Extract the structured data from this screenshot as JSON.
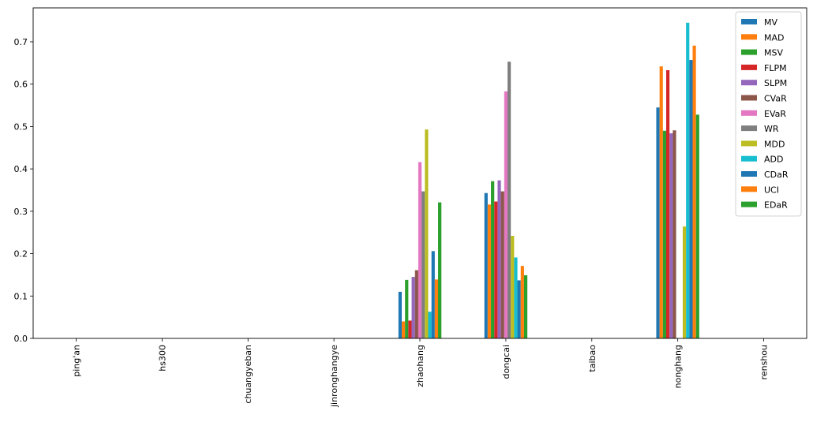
{
  "chart_data": {
    "type": "bar",
    "title": "",
    "xlabel": "",
    "ylabel": "",
    "categories": [
      "ping'an",
      "hs300",
      "chuangyeban",
      "jinronghangye",
      "zhaohang",
      "dongcai",
      "taibao",
      "nonghang",
      "renshou"
    ],
    "ylim": [
      0,
      0.78
    ],
    "yticks": [
      0.0,
      0.1,
      0.2,
      0.3,
      0.4,
      0.5,
      0.6,
      0.7
    ],
    "ytick_labels": [
      "0.0",
      "0.1",
      "0.2",
      "0.3",
      "0.4",
      "0.5",
      "0.6",
      "0.7"
    ],
    "grid": false,
    "legend_position": "top-right",
    "series": [
      {
        "name": "MV",
        "color": "#1f77b4",
        "values": [
          0,
          0,
          0,
          0,
          0.11,
          0.343,
          0,
          0.545,
          0
        ]
      },
      {
        "name": "MAD",
        "color": "#ff7f0e",
        "values": [
          0,
          0,
          0,
          0,
          0.04,
          0.316,
          0,
          0.642,
          0
        ]
      },
      {
        "name": "MSV",
        "color": "#2ca02c",
        "values": [
          0,
          0,
          0,
          0,
          0.138,
          0.371,
          0,
          0.49,
          0
        ]
      },
      {
        "name": "FLPM",
        "color": "#d62728",
        "values": [
          0,
          0,
          0,
          0,
          0.042,
          0.323,
          0,
          0.633,
          0
        ]
      },
      {
        "name": "SLPM",
        "color": "#9467bd",
        "values": [
          0,
          0,
          0,
          0,
          0.145,
          0.373,
          0,
          0.484,
          0
        ]
      },
      {
        "name": "CVaR",
        "color": "#8c564b",
        "values": [
          0,
          0,
          0,
          0,
          0.161,
          0.347,
          0,
          0.491,
          0
        ]
      },
      {
        "name": "EVaR",
        "color": "#e377c2",
        "values": [
          0,
          0,
          0,
          0,
          0.416,
          0.583,
          0,
          0,
          0
        ]
      },
      {
        "name": "WR",
        "color": "#7f7f7f",
        "values": [
          0,
          0,
          0,
          0,
          0.347,
          0.653,
          0,
          0,
          0
        ]
      },
      {
        "name": "MDD",
        "color": "#bcbd22",
        "values": [
          0,
          0,
          0,
          0,
          0.493,
          0.242,
          0,
          0.264,
          0
        ]
      },
      {
        "name": "ADD",
        "color": "#17becf",
        "values": [
          0,
          0,
          0,
          0,
          0.063,
          0.191,
          0,
          0.745,
          0
        ]
      },
      {
        "name": "CDaR",
        "color": "#1f77b4",
        "values": [
          0,
          0,
          0,
          0,
          0.206,
          0.137,
          0,
          0.657,
          0
        ]
      },
      {
        "name": "UCI",
        "color": "#ff7f0e",
        "values": [
          0,
          0,
          0,
          0,
          0.139,
          0.171,
          0,
          0.691,
          0
        ]
      },
      {
        "name": "EDaR",
        "color": "#2ca02c",
        "values": [
          0,
          0,
          0,
          0,
          0.321,
          0.149,
          0,
          0.528,
          0
        ]
      }
    ]
  }
}
